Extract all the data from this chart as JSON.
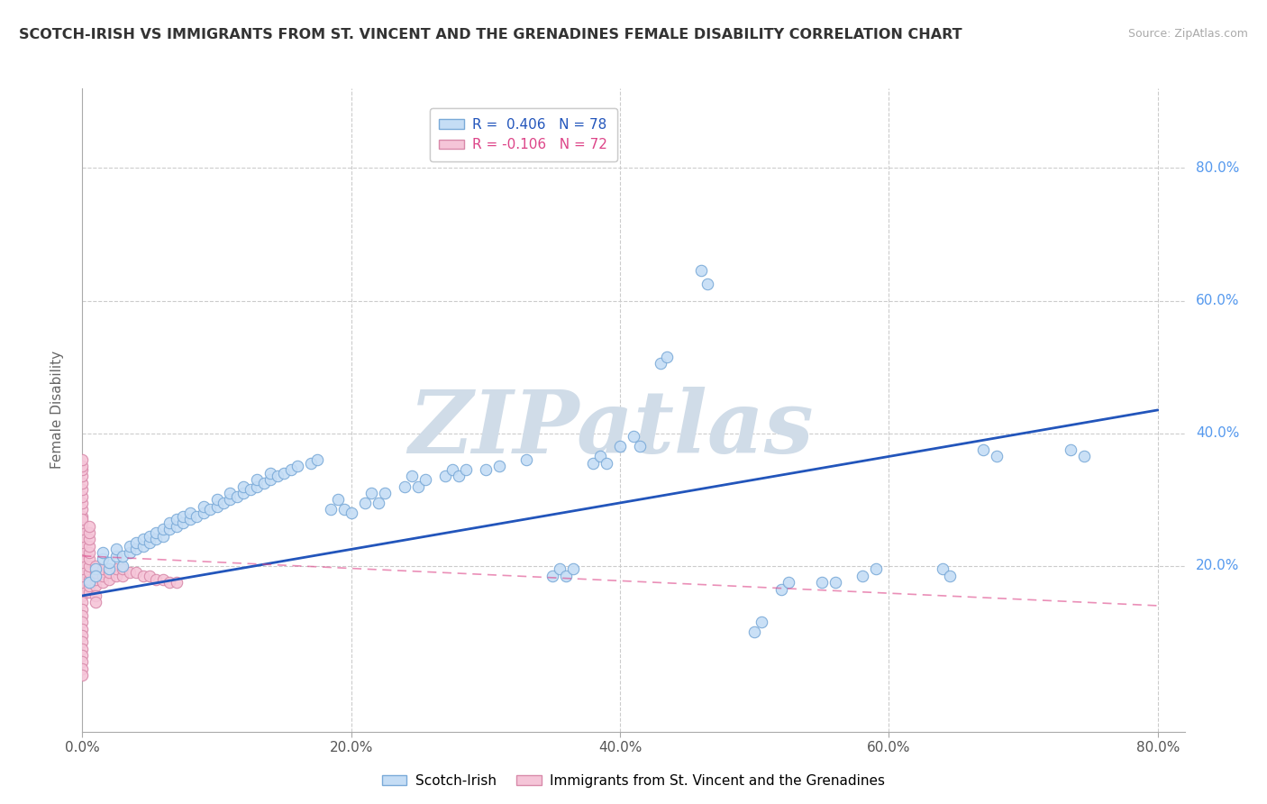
{
  "title": "SCOTCH-IRISH VS IMMIGRANTS FROM ST. VINCENT AND THE GRENADINES FEMALE DISABILITY CORRELATION CHART",
  "source_text": "Source: ZipAtlas.com",
  "ylabel": "Female Disability",
  "xlim": [
    0.0,
    0.82
  ],
  "ylim": [
    -0.05,
    0.92
  ],
  "xtick_vals": [
    0.0,
    0.2,
    0.4,
    0.6,
    0.8
  ],
  "xtick_labels": [
    "0.0%",
    "20.0%",
    "40.0%",
    "60.0%",
    "80.0%"
  ],
  "ytick_vals": [
    0.2,
    0.4,
    0.6,
    0.8
  ],
  "ytick_labels": [
    "20.0%",
    "40.0%",
    "60.0%",
    "80.0%"
  ],
  "blue_scatter_color": "#c5ddf5",
  "blue_edge_color": "#7aaad8",
  "blue_line_color": "#2255bb",
  "pink_scatter_color": "#f5c5d8",
  "pink_edge_color": "#d88aaa",
  "pink_line_color": "#dd4488",
  "watermark_color": "#d0dce8",
  "background_color": "#ffffff",
  "grid_color": "#cccccc",
  "ytick_color": "#5599ee",
  "blue_points": [
    [
      0.005,
      0.175
    ],
    [
      0.01,
      0.195
    ],
    [
      0.01,
      0.185
    ],
    [
      0.015,
      0.21
    ],
    [
      0.015,
      0.22
    ],
    [
      0.02,
      0.195
    ],
    [
      0.02,
      0.205
    ],
    [
      0.025,
      0.215
    ],
    [
      0.025,
      0.225
    ],
    [
      0.03,
      0.2
    ],
    [
      0.03,
      0.215
    ],
    [
      0.035,
      0.22
    ],
    [
      0.035,
      0.23
    ],
    [
      0.04,
      0.225
    ],
    [
      0.04,
      0.235
    ],
    [
      0.045,
      0.23
    ],
    [
      0.045,
      0.24
    ],
    [
      0.05,
      0.235
    ],
    [
      0.05,
      0.245
    ],
    [
      0.055,
      0.24
    ],
    [
      0.055,
      0.25
    ],
    [
      0.06,
      0.245
    ],
    [
      0.06,
      0.255
    ],
    [
      0.065,
      0.255
    ],
    [
      0.065,
      0.265
    ],
    [
      0.07,
      0.26
    ],
    [
      0.07,
      0.27
    ],
    [
      0.075,
      0.265
    ],
    [
      0.075,
      0.275
    ],
    [
      0.08,
      0.27
    ],
    [
      0.08,
      0.28
    ],
    [
      0.085,
      0.275
    ],
    [
      0.09,
      0.28
    ],
    [
      0.09,
      0.29
    ],
    [
      0.095,
      0.285
    ],
    [
      0.1,
      0.29
    ],
    [
      0.1,
      0.3
    ],
    [
      0.105,
      0.295
    ],
    [
      0.11,
      0.3
    ],
    [
      0.11,
      0.31
    ],
    [
      0.115,
      0.305
    ],
    [
      0.12,
      0.31
    ],
    [
      0.12,
      0.32
    ],
    [
      0.125,
      0.315
    ],
    [
      0.13,
      0.32
    ],
    [
      0.13,
      0.33
    ],
    [
      0.135,
      0.325
    ],
    [
      0.14,
      0.33
    ],
    [
      0.14,
      0.34
    ],
    [
      0.145,
      0.335
    ],
    [
      0.15,
      0.34
    ],
    [
      0.155,
      0.345
    ],
    [
      0.16,
      0.35
    ],
    [
      0.17,
      0.355
    ],
    [
      0.175,
      0.36
    ],
    [
      0.185,
      0.285
    ],
    [
      0.19,
      0.3
    ],
    [
      0.195,
      0.285
    ],
    [
      0.2,
      0.28
    ],
    [
      0.21,
      0.295
    ],
    [
      0.215,
      0.31
    ],
    [
      0.22,
      0.295
    ],
    [
      0.225,
      0.31
    ],
    [
      0.24,
      0.32
    ],
    [
      0.245,
      0.335
    ],
    [
      0.25,
      0.32
    ],
    [
      0.255,
      0.33
    ],
    [
      0.27,
      0.335
    ],
    [
      0.275,
      0.345
    ],
    [
      0.28,
      0.335
    ],
    [
      0.285,
      0.345
    ],
    [
      0.3,
      0.345
    ],
    [
      0.31,
      0.35
    ],
    [
      0.33,
      0.36
    ],
    [
      0.35,
      0.185
    ],
    [
      0.355,
      0.195
    ],
    [
      0.36,
      0.185
    ],
    [
      0.365,
      0.195
    ],
    [
      0.38,
      0.355
    ],
    [
      0.385,
      0.365
    ],
    [
      0.39,
      0.355
    ],
    [
      0.4,
      0.38
    ],
    [
      0.41,
      0.395
    ],
    [
      0.415,
      0.38
    ],
    [
      0.43,
      0.505
    ],
    [
      0.435,
      0.515
    ],
    [
      0.46,
      0.645
    ],
    [
      0.465,
      0.625
    ],
    [
      0.5,
      0.1
    ],
    [
      0.505,
      0.115
    ],
    [
      0.52,
      0.165
    ],
    [
      0.525,
      0.175
    ],
    [
      0.55,
      0.175
    ],
    [
      0.56,
      0.175
    ],
    [
      0.58,
      0.185
    ],
    [
      0.59,
      0.195
    ],
    [
      0.64,
      0.195
    ],
    [
      0.645,
      0.185
    ],
    [
      0.67,
      0.375
    ],
    [
      0.68,
      0.365
    ],
    [
      0.735,
      0.375
    ],
    [
      0.745,
      0.365
    ]
  ],
  "pink_points": [
    [
      0.0,
      0.155
    ],
    [
      0.0,
      0.165
    ],
    [
      0.0,
      0.175
    ],
    [
      0.0,
      0.185
    ],
    [
      0.0,
      0.195
    ],
    [
      0.0,
      0.205
    ],
    [
      0.0,
      0.215
    ],
    [
      0.0,
      0.225
    ],
    [
      0.0,
      0.235
    ],
    [
      0.0,
      0.245
    ],
    [
      0.0,
      0.255
    ],
    [
      0.0,
      0.265
    ],
    [
      0.0,
      0.145
    ],
    [
      0.0,
      0.135
    ],
    [
      0.0,
      0.125
    ],
    [
      0.0,
      0.115
    ],
    [
      0.0,
      0.105
    ],
    [
      0.0,
      0.095
    ],
    [
      0.0,
      0.085
    ],
    [
      0.0,
      0.075
    ],
    [
      0.0,
      0.275
    ],
    [
      0.0,
      0.285
    ],
    [
      0.0,
      0.295
    ],
    [
      0.0,
      0.305
    ],
    [
      0.0,
      0.315
    ],
    [
      0.0,
      0.325
    ],
    [
      0.0,
      0.335
    ],
    [
      0.0,
      0.345
    ],
    [
      0.005,
      0.16
    ],
    [
      0.005,
      0.17
    ],
    [
      0.005,
      0.18
    ],
    [
      0.005,
      0.19
    ],
    [
      0.005,
      0.2
    ],
    [
      0.005,
      0.21
    ],
    [
      0.005,
      0.22
    ],
    [
      0.005,
      0.23
    ],
    [
      0.01,
      0.17
    ],
    [
      0.01,
      0.18
    ],
    [
      0.01,
      0.19
    ],
    [
      0.01,
      0.2
    ],
    [
      0.015,
      0.175
    ],
    [
      0.015,
      0.185
    ],
    [
      0.015,
      0.195
    ],
    [
      0.02,
      0.18
    ],
    [
      0.02,
      0.19
    ],
    [
      0.025,
      0.185
    ],
    [
      0.025,
      0.195
    ],
    [
      0.03,
      0.185
    ],
    [
      0.03,
      0.195
    ],
    [
      0.035,
      0.19
    ],
    [
      0.04,
      0.19
    ],
    [
      0.045,
      0.185
    ],
    [
      0.05,
      0.185
    ],
    [
      0.055,
      0.18
    ],
    [
      0.06,
      0.18
    ],
    [
      0.065,
      0.175
    ],
    [
      0.07,
      0.175
    ],
    [
      0.0,
      0.27
    ],
    [
      0.0,
      0.35
    ],
    [
      0.0,
      0.36
    ],
    [
      0.005,
      0.24
    ],
    [
      0.005,
      0.25
    ],
    [
      0.005,
      0.26
    ],
    [
      0.01,
      0.155
    ],
    [
      0.01,
      0.145
    ],
    [
      0.0,
      0.065
    ],
    [
      0.0,
      0.055
    ],
    [
      0.0,
      0.045
    ],
    [
      0.0,
      0.035
    ]
  ],
  "blue_trendline": [
    [
      0.0,
      0.155
    ],
    [
      0.8,
      0.435
    ]
  ],
  "pink_trendline": [
    [
      0.0,
      0.215
    ],
    [
      0.8,
      0.14
    ]
  ]
}
